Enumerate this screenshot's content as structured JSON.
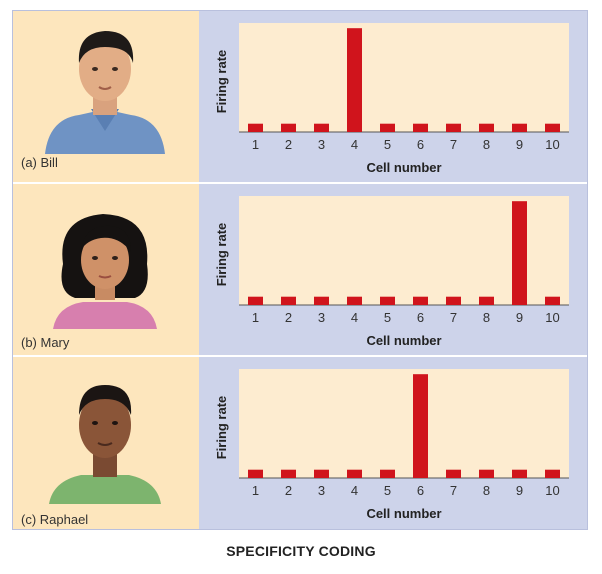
{
  "caption": "SPECIFICITY CODING",
  "colors": {
    "bar": "#d0141c",
    "plot_bg": "#fdecd0",
    "left_bg": "#fde6bd",
    "frame_bg": "#cdd3ea"
  },
  "icons": [
    "bill-face-icon",
    "mary-face-icon",
    "raphael-face-icon"
  ],
  "panels": [
    {
      "label": "(a) Bill",
      "face": "bill-face-icon"
    },
    {
      "label": "(b) Mary",
      "face": "mary-face-icon"
    },
    {
      "label": "(c) Raphael",
      "face": "raphael-face-icon"
    }
  ],
  "chart_data": [
    {
      "type": "bar",
      "categories": [
        "1",
        "2",
        "3",
        "4",
        "5",
        "6",
        "7",
        "8",
        "9",
        "10"
      ],
      "values": [
        0.08,
        0.08,
        0.08,
        1.0,
        0.08,
        0.08,
        0.08,
        0.08,
        0.08,
        0.08
      ],
      "xlabel": "Cell number",
      "ylabel": "Firing rate",
      "ylim": [
        0,
        1.05
      ],
      "grid": false
    },
    {
      "type": "bar",
      "categories": [
        "1",
        "2",
        "3",
        "4",
        "5",
        "6",
        "7",
        "8",
        "9",
        "10"
      ],
      "values": [
        0.08,
        0.08,
        0.08,
        0.08,
        0.08,
        0.08,
        0.08,
        0.08,
        1.0,
        0.08
      ],
      "xlabel": "Cell number",
      "ylabel": "Firing rate",
      "ylim": [
        0,
        1.05
      ],
      "grid": false
    },
    {
      "type": "bar",
      "categories": [
        "1",
        "2",
        "3",
        "4",
        "5",
        "6",
        "7",
        "8",
        "9",
        "10"
      ],
      "values": [
        0.08,
        0.08,
        0.08,
        0.08,
        0.08,
        1.0,
        0.08,
        0.08,
        0.08,
        0.08
      ],
      "xlabel": "Cell number",
      "ylabel": "Firing rate",
      "ylim": [
        0,
        1.05
      ],
      "grid": false
    }
  ]
}
